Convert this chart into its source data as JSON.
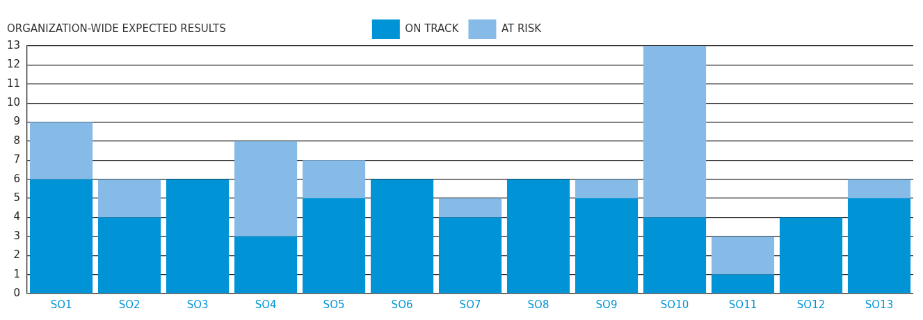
{
  "chart_data": {
    "type": "bar",
    "title": "ORGANIZATION-WIDE EXPECTED RESULTS",
    "categories": [
      "SO1",
      "SO2",
      "SO3",
      "SO4",
      "SO5",
      "SO6",
      "SO7",
      "SO8",
      "SO9",
      "SO10",
      "SO11",
      "SO12",
      "SO13"
    ],
    "series": [
      {
        "name": "ON TRACK",
        "color": "#0093d6",
        "values": [
          6,
          4,
          6,
          3,
          5,
          6,
          4,
          6,
          5,
          4,
          1,
          4,
          5
        ]
      },
      {
        "name": "AT RISK",
        "color": "#86bbe8",
        "values": [
          3,
          2,
          0,
          5,
          2,
          0,
          1,
          0,
          1,
          9,
          2,
          0,
          1
        ]
      }
    ],
    "stacked": true,
    "ylim": [
      0,
      13
    ],
    "yticks": [
      0,
      1,
      2,
      3,
      4,
      5,
      6,
      7,
      8,
      9,
      10,
      11,
      12,
      13
    ],
    "grid": "y",
    "legend": "top"
  }
}
